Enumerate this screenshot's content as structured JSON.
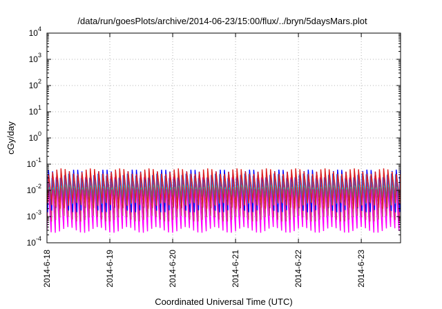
{
  "chart_data": {
    "type": "line",
    "title": "/data/run/goesPlots/archive/2014-06-23/15:00/flux/../bryn/5daysMars.plot",
    "xlabel": "Coordinated Universal Time (UTC)",
    "ylabel": "cGy/day",
    "yscale": "log",
    "ylim": [
      0.0001,
      10000
    ],
    "xlim": [
      "2014-06-18T00:00",
      "2014-06-23T15:00"
    ],
    "x_ticks": [
      "2014-6-18",
      "2014-6-19",
      "2014-6-20",
      "2014-6-21",
      "2014-6-22",
      "2014-6-23"
    ],
    "y_ticks": [
      {
        "base": "10",
        "exp": "-4"
      },
      {
        "base": "10",
        "exp": "-3"
      },
      {
        "base": "10",
        "exp": "-2"
      },
      {
        "base": "10",
        "exp": "-1"
      },
      {
        "base": "10",
        "exp": "0"
      },
      {
        "base": "10",
        "exp": "1"
      },
      {
        "base": "10",
        "exp": "2"
      },
      {
        "base": "10",
        "exp": "3"
      },
      {
        "base": "10",
        "exp": "4"
      }
    ],
    "grid": true,
    "cycles_per_day": 15,
    "series": [
      {
        "color": "#ff00ff",
        "peak": 0.025,
        "trough": 0.0003
      },
      {
        "color": "#cc3377",
        "peak": 0.03,
        "trough": 0.0008
      },
      {
        "color": "#0000ff",
        "peak": 0.05,
        "trough": 0.0018
      },
      {
        "color": "#2266ff",
        "peak": 0.035,
        "trough": 0.0035
      },
      {
        "color": "#00cccc",
        "peak": 0.014,
        "trough": 0.006
      },
      {
        "color": "#dd2222",
        "peak": 0.055,
        "trough": 0.0025
      }
    ]
  }
}
